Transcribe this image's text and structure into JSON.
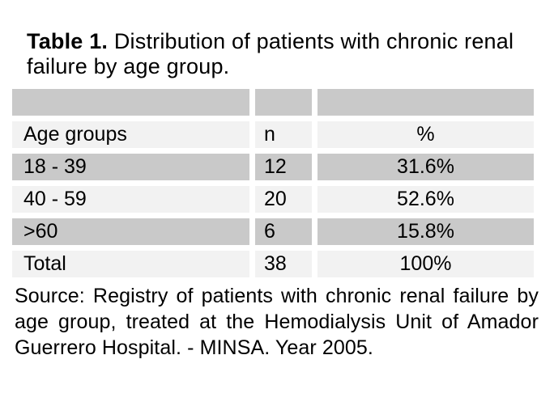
{
  "title": {
    "label": "Table 1.",
    "text": " Distribution of patients with chronic renal failure by age group."
  },
  "table": {
    "columns": [
      "Age groups",
      "n",
      "%"
    ],
    "rows": [
      {
        "age_group": "18 - 39",
        "n": "12",
        "pct": "31.6%"
      },
      {
        "age_group": "40 - 59",
        "n": "20",
        "pct": "52.6%"
      },
      {
        "age_group": ">60",
        "n": "6",
        "pct": "15.8%"
      },
      {
        "age_group": "Total",
        "n": "38",
        "pct": "100%"
      }
    ]
  },
  "source_note": "Source: Registry of patients with chronic renal failure by age group, treated at the Hemodialysis Unit of Amador Guerrero Hospital. - MINSA. Year 2005.",
  "colors": {
    "shaded_row": "#C9C9C9",
    "light_row": "#F2F2F2",
    "background": "#FFFFFF",
    "text": "#000000"
  },
  "chart_data": {
    "type": "table",
    "title": "Table 1. Distribution of patients with chronic renal failure by age group.",
    "columns": [
      "Age groups",
      "n",
      "%"
    ],
    "rows": [
      [
        "18 - 39",
        12,
        "31.6%"
      ],
      [
        "40 - 59",
        20,
        "52.6%"
      ],
      [
        ">60",
        6,
        "15.8%"
      ],
      [
        "Total",
        38,
        "100%"
      ]
    ],
    "source": "Source: Registry of patients with chronic renal failure by age group, treated at the Hemodialysis Unit of Amador Guerrero Hospital. - MINSA. Year 2005."
  }
}
